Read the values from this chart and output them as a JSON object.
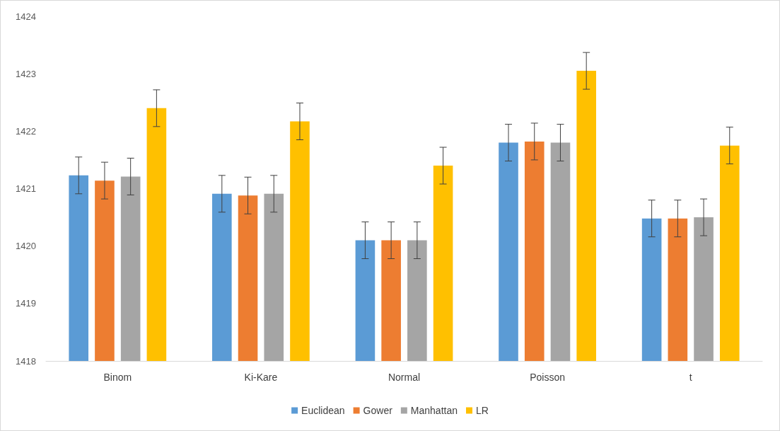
{
  "chart_data": {
    "type": "bar",
    "categories": [
      "Binom",
      "Ki-Kare",
      "Normal",
      "Poisson",
      "t"
    ],
    "series": [
      {
        "name": "Euclidean",
        "color": "#5b9bd5",
        "values": [
          1421.23,
          1420.91,
          1420.1,
          1421.8,
          1420.48
        ],
        "errors": [
          0.32,
          0.32,
          0.32,
          0.32,
          0.32
        ]
      },
      {
        "name": "Gower",
        "color": "#ed7d31",
        "values": [
          1421.14,
          1420.88,
          1420.1,
          1421.82,
          1420.48
        ],
        "errors": [
          0.32,
          0.32,
          0.32,
          0.32,
          0.32
        ]
      },
      {
        "name": "Manhattan",
        "color": "#a5a5a5",
        "values": [
          1421.21,
          1420.91,
          1420.1,
          1421.8,
          1420.5
        ],
        "errors": [
          0.32,
          0.32,
          0.32,
          0.32,
          0.32
        ]
      },
      {
        "name": "LR",
        "color": "#ffc000",
        "values": [
          1422.4,
          1422.17,
          1421.4,
          1423.05,
          1421.75
        ],
        "errors": [
          0.32,
          0.32,
          0.32,
          0.32,
          0.32
        ]
      }
    ],
    "ylim": [
      1418,
      1424
    ],
    "yticks": [
      1418,
      1419,
      1420,
      1421,
      1422,
      1423,
      1424
    ],
    "grid": false,
    "legend": "bottom"
  }
}
